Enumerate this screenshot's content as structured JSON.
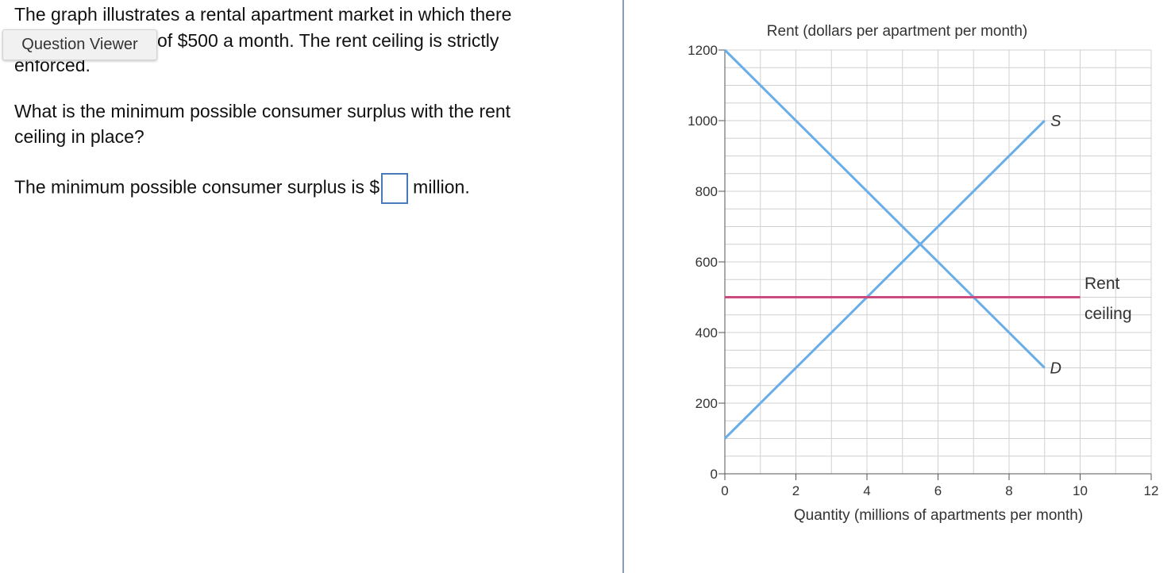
{
  "question": {
    "intro_lines": [
      "The graph illustrates a rental apartment market in which there",
      "of $500 a month. The rent ceiling is strictly",
      "enforced."
    ],
    "tooltip": "Question Viewer",
    "question_lines": [
      "What is the minimum possible consumer surplus with the rent",
      "ceiling in place?"
    ],
    "answer_prefix": "The minimum possible consumer surplus is $",
    "answer_suffix": "million."
  },
  "chart_data": {
    "type": "line",
    "ylabel": "Rent (dollars per apartment per month)",
    "xlabel": "Quantity (millions of apartments per month)",
    "xlim": [
      0,
      12
    ],
    "ylim": [
      0,
      1200
    ],
    "xticks": [
      0,
      2,
      4,
      6,
      8,
      10,
      12
    ],
    "yticks": [
      0,
      200,
      400,
      600,
      800,
      1000,
      1200
    ],
    "xgrid": [
      0,
      1,
      2,
      3,
      4,
      5,
      6,
      7,
      8,
      9,
      10,
      11,
      12
    ],
    "ygrid": [
      0,
      50,
      100,
      150,
      200,
      250,
      300,
      350,
      400,
      450,
      500,
      550,
      600,
      650,
      700,
      750,
      800,
      850,
      900,
      950,
      1000,
      1050,
      1100,
      1150,
      1200
    ],
    "grid": true,
    "series": [
      {
        "name": "S",
        "color": "#6aaee8",
        "x": [
          0,
          9
        ],
        "values": [
          100,
          1000
        ]
      },
      {
        "name": "D",
        "color": "#6aaee8",
        "x": [
          0,
          9
        ],
        "values": [
          1200,
          300
        ]
      },
      {
        "color": "#cc4b7f",
        "x": [
          0,
          10
        ],
        "values": [
          500,
          500
        ]
      }
    ],
    "annotation_lines": [
      "Rent",
      "ceiling"
    ]
  }
}
